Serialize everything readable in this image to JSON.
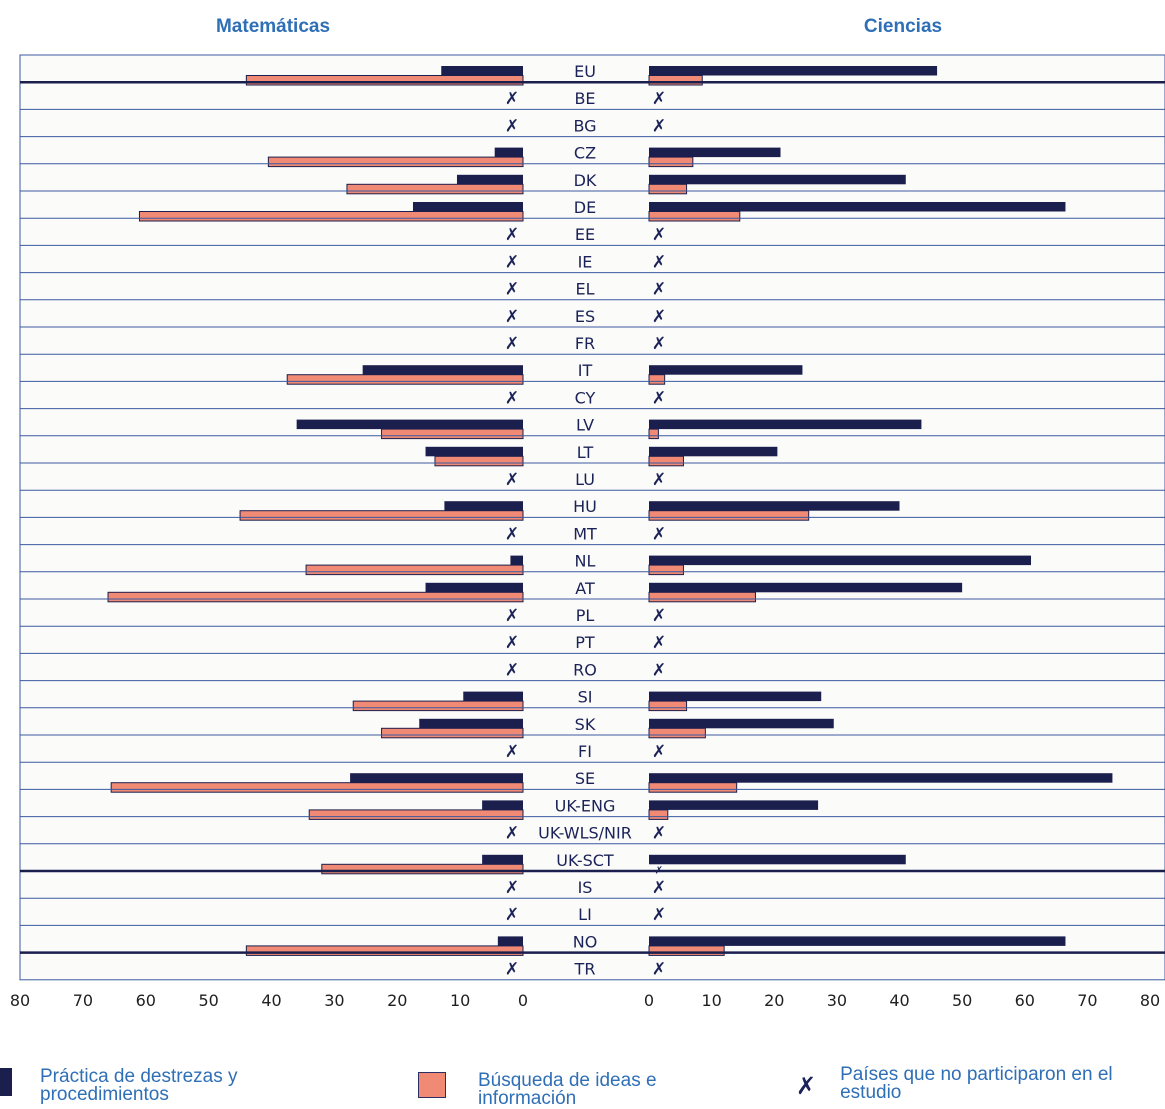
{
  "chart_data": {
    "type": "bar",
    "layout": "back-to-back horizontal bars",
    "panels": [
      {
        "title": "Matemáticas",
        "xlim": [
          0,
          80
        ],
        "direction": "leftward"
      },
      {
        "title": "Ciencias",
        "xlim": [
          0,
          80
        ],
        "direction": "rightward"
      }
    ],
    "x_ticks": [
      80,
      70,
      60,
      50,
      40,
      30,
      20,
      10,
      0
    ],
    "x_ticks_right": [
      0,
      10,
      20,
      30,
      40,
      50,
      60,
      70,
      80
    ],
    "series": [
      {
        "name": "Práctica de destrezas y procedimientos",
        "color": "#1b1f4e"
      },
      {
        "name": "Búsqueda de ideas e información",
        "color": "#f08a74"
      }
    ],
    "categories": [
      {
        "label": "EU",
        "participated": true,
        "math": [
          13,
          44
        ],
        "science": [
          46,
          8.5
        ]
      },
      {
        "label": "BE",
        "participated": false
      },
      {
        "label": "BG",
        "participated": false
      },
      {
        "label": "CZ",
        "participated": true,
        "math": [
          4.5,
          40.5
        ],
        "science": [
          21,
          7
        ]
      },
      {
        "label": "DK",
        "participated": true,
        "math": [
          10.5,
          28
        ],
        "science": [
          41,
          6
        ]
      },
      {
        "label": "DE",
        "participated": true,
        "math": [
          17.5,
          61
        ],
        "science": [
          66.5,
          14.5
        ]
      },
      {
        "label": "EE",
        "participated": false
      },
      {
        "label": "IE",
        "participated": false
      },
      {
        "label": "EL",
        "participated": false
      },
      {
        "label": "ES",
        "participated": false
      },
      {
        "label": "FR",
        "participated": false
      },
      {
        "label": "IT",
        "participated": true,
        "math": [
          25.5,
          37.5
        ],
        "science": [
          24.5,
          2.5
        ]
      },
      {
        "label": "CY",
        "participated": false
      },
      {
        "label": "LV",
        "participated": true,
        "math": [
          36,
          22.5
        ],
        "science": [
          43.5,
          1.5
        ]
      },
      {
        "label": "LT",
        "participated": true,
        "math": [
          15.5,
          14
        ],
        "science": [
          20.5,
          5.5
        ]
      },
      {
        "label": "LU",
        "participated": false
      },
      {
        "label": "HU",
        "participated": true,
        "math": [
          12.5,
          45
        ],
        "science": [
          40,
          25.5
        ]
      },
      {
        "label": "MT",
        "participated": false
      },
      {
        "label": "NL",
        "participated": true,
        "math": [
          2,
          34.5
        ],
        "science": [
          61,
          5.5
        ]
      },
      {
        "label": "AT",
        "participated": true,
        "math": [
          15.5,
          66
        ],
        "science": [
          50,
          17
        ]
      },
      {
        "label": "PL",
        "participated": false
      },
      {
        "label": "PT",
        "participated": false
      },
      {
        "label": "RO",
        "participated": false
      },
      {
        "label": "SI",
        "participated": true,
        "math": [
          9.5,
          27
        ],
        "science": [
          27.5,
          6
        ]
      },
      {
        "label": "SK",
        "participated": true,
        "math": [
          16.5,
          22.5
        ],
        "science": [
          29.5,
          9
        ]
      },
      {
        "label": "FI",
        "participated": false
      },
      {
        "label": "SE",
        "participated": true,
        "math": [
          27.5,
          65.5
        ],
        "science": [
          74,
          14
        ]
      },
      {
        "label": "UK-ENG",
        "participated": true,
        "math": [
          6.5,
          34
        ],
        "science": [
          27,
          3
        ]
      },
      {
        "label": "UK-WLS/NIR",
        "participated": false
      },
      {
        "label": "UK-SCT",
        "participated": true,
        "math": [
          6.5,
          32
        ],
        "science": [
          41,
          0
        ],
        "science_note": "x"
      },
      {
        "label": "IS",
        "participated": false
      },
      {
        "label": "LI",
        "participated": false
      },
      {
        "label": "NO",
        "participated": true,
        "math": [
          4,
          44
        ],
        "science": [
          66.5,
          12
        ]
      },
      {
        "label": "TR",
        "participated": false
      }
    ],
    "group_separators_after": [
      "EU",
      "UK-SCT",
      "NO"
    ],
    "not_participated_marker": "✗"
  },
  "legend": {
    "practice": "Práctica de destrezas y procedimientos",
    "search": "Búsqueda de ideas e información",
    "not_participated": "Países que no participaron en el estudio"
  },
  "colors": {
    "title": "#2f6fb6",
    "navy": "#1b1f4e",
    "salmon": "#f08a74",
    "grid": "#3b5aa0",
    "label": "#1b2257"
  }
}
